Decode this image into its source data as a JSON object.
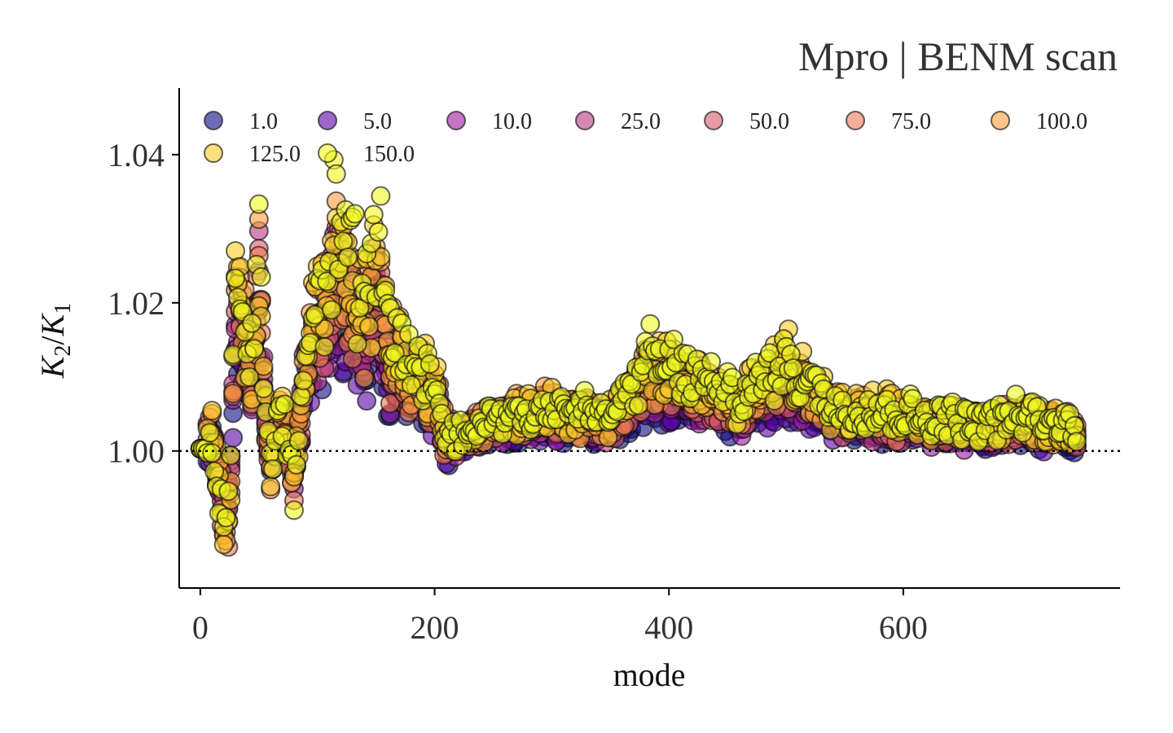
{
  "chart_data": {
    "type": "scatter",
    "title": "Mpro | BENM scan",
    "xlabel": "mode",
    "ylabel": "K2/K1",
    "ylabel_parts": {
      "main1": "K",
      "sub1": "2",
      "sep": "/",
      "main2": "K",
      "sub2": "1"
    },
    "xlim": [
      -18,
      785
    ],
    "ylim": [
      0.9815,
      1.049
    ],
    "xticks": [
      0,
      200,
      400,
      600
    ],
    "xtick_labels": [
      "0",
      "200",
      "400",
      "600"
    ],
    "yticks": [
      1.0,
      1.02,
      1.04
    ],
    "ytick_labels": [
      "1.00",
      "1.02",
      "1.04"
    ],
    "reference_line": {
      "y": 1.0,
      "style": "dotted",
      "color": "#000000"
    },
    "grid": false,
    "legend_position": "top",
    "legend_columns": 7,
    "n_modes": 750,
    "marker_opacity": 0.6,
    "series": [
      {
        "name": "1.0",
        "color": "#0d0887",
        "scale": 1.0
      },
      {
        "name": "5.0",
        "color": "#5c01a6",
        "scale": 1.0
      },
      {
        "name": "10.0",
        "color": "#9c179e",
        "scale": 1.0
      },
      {
        "name": "25.0",
        "color": "#bd3786",
        "scale": 1.0
      },
      {
        "name": "50.0",
        "color": "#d8576b",
        "scale": 1.0
      },
      {
        "name": "75.0",
        "color": "#ed7953",
        "scale": 1.0
      },
      {
        "name": "100.0",
        "color": "#fb9f3a",
        "scale": 1.0
      },
      {
        "name": "125.0",
        "color": "#fdca26",
        "scale": 1.0
      },
      {
        "name": "150.0",
        "color": "#f0f921",
        "scale": 1.0
      }
    ],
    "envelope": [
      {
        "x": 0,
        "y": 1.0003
      },
      {
        "x": 5,
        "y": 1.0005
      },
      {
        "x": 10,
        "y": 1.004
      },
      {
        "x": 15,
        "y": 0.995
      },
      {
        "x": 20,
        "y": 0.988
      },
      {
        "x": 25,
        "y": 0.985
      },
      {
        "x": 30,
        "y": 1.031
      },
      {
        "x": 35,
        "y": 1.029
      },
      {
        "x": 40,
        "y": 1.02
      },
      {
        "x": 45,
        "y": 1.014
      },
      {
        "x": 50,
        "y": 1.0405
      },
      {
        "x": 55,
        "y": 1.01
      },
      {
        "x": 60,
        "y": 0.997
      },
      {
        "x": 70,
        "y": 1.008
      },
      {
        "x": 80,
        "y": 0.995
      },
      {
        "x": 90,
        "y": 1.018
      },
      {
        "x": 100,
        "y": 1.026
      },
      {
        "x": 110,
        "y": 1.03
      },
      {
        "x": 115,
        "y": 1.043
      },
      {
        "x": 120,
        "y": 1.036
      },
      {
        "x": 130,
        "y": 1.032
      },
      {
        "x": 140,
        "y": 1.024
      },
      {
        "x": 150,
        "y": 1.037
      },
      {
        "x": 155,
        "y": 1.031
      },
      {
        "x": 160,
        "y": 1.02
      },
      {
        "x": 170,
        "y": 1.018
      },
      {
        "x": 180,
        "y": 1.015
      },
      {
        "x": 190,
        "y": 1.014
      },
      {
        "x": 200,
        "y": 1.012
      },
      {
        "x": 210,
        "y": 1.002
      },
      {
        "x": 250,
        "y": 1.006
      },
      {
        "x": 300,
        "y": 1.008
      },
      {
        "x": 350,
        "y": 1.006
      },
      {
        "x": 385,
        "y": 1.016
      },
      {
        "x": 420,
        "y": 1.013
      },
      {
        "x": 460,
        "y": 1.009
      },
      {
        "x": 500,
        "y": 1.016
      },
      {
        "x": 540,
        "y": 1.008
      },
      {
        "x": 580,
        "y": 1.007
      },
      {
        "x": 620,
        "y": 1.006
      },
      {
        "x": 660,
        "y": 1.005
      },
      {
        "x": 700,
        "y": 1.006
      },
      {
        "x": 750,
        "y": 1.004
      }
    ]
  }
}
